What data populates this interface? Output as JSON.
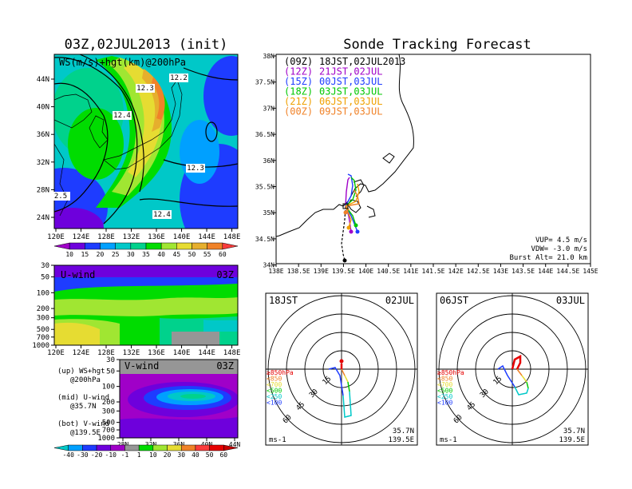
{
  "left_title": "03Z,02JUL2013 (init)",
  "right_title": "Sonde Tracking Forecast",
  "map_ws": {
    "label": "WS(m/s)+hgt(km)@200hPa",
    "lon_ticks": [
      "120E",
      "124E",
      "128E",
      "132E",
      "136E",
      "140E",
      "144E",
      "148E"
    ],
    "lat_ticks": [
      "44N",
      "40N",
      "36N",
      "32N",
      "28N",
      "24N"
    ],
    "contour_labels": [
      "12.3",
      "12.2",
      "12.4",
      "12.3",
      "12.4",
      "2.5"
    ]
  },
  "ws_colorbar": [
    "10",
    "15",
    "20",
    "25",
    "30",
    "35",
    "40",
    "45",
    "50",
    "55",
    "60"
  ],
  "ws_colors": [
    "#a000c8",
    "#6e00dc",
    "#1e3cff",
    "#00a0ff",
    "#00c8c8",
    "#00d28c",
    "#00dc00",
    "#a0e632",
    "#e6dc32",
    "#e6af2d",
    "#f08228",
    "#fa3c3c"
  ],
  "uwind": {
    "label": "U-wind",
    "time": "03Z",
    "p_ticks": [
      "30",
      "50",
      "100",
      "200",
      "300",
      "500",
      "700",
      "1000"
    ],
    "lon_ticks": [
      "120E",
      "124E",
      "128E",
      "132E",
      "136E",
      "140E",
      "144E",
      "148E"
    ]
  },
  "vwind": {
    "label": "V-wind",
    "time": "03Z",
    "p_ticks": [
      "30",
      "50",
      "100",
      "200",
      "300",
      "500",
      "700",
      "1000"
    ],
    "lat_ticks": [
      "28N",
      "32N",
      "36N",
      "40N",
      "44N"
    ]
  },
  "legend_notes": [
    {
      "a": "(up) WS+hgt",
      "b": "@200hPa"
    },
    {
      "a": "(mid) U-wind",
      "b": "@35.7N"
    },
    {
      "a": "(bot) V-wind",
      "b": "@139.5E"
    }
  ],
  "uv_colorbar": [
    "-40",
    "-30",
    "-20",
    "-10",
    "-1",
    "1",
    "10",
    "20",
    "30",
    "40",
    "50",
    "60"
  ],
  "uv_colors": [
    "#00c8c8",
    "#00a0ff",
    "#1e3cff",
    "#6e00dc",
    "#a000c8",
    "#969696",
    "#00dc00",
    "#a0e632",
    "#e6dc32",
    "#f08228",
    "#fa3c3c",
    "#e60000",
    "#c80000"
  ],
  "track_map": {
    "lat_ticks": [
      "38N",
      "37.5N",
      "37N",
      "36.5N",
      "36N",
      "35.5N",
      "35N",
      "34.5N",
      "34N"
    ],
    "lon_ticks": [
      "138E",
      "138.5E",
      "139E",
      "139.5E",
      "140E",
      "140.5E",
      "141E",
      "141.5E",
      "142E",
      "142.5E",
      "143E",
      "143.5E",
      "144E",
      "144.5E",
      "145E"
    ],
    "legend": [
      {
        "label": "(09Z)",
        "value": "18JST,02JUL2013",
        "color": "#000000"
      },
      {
        "label": "(12Z)",
        "value": "21JST,02JUL",
        "color": "#a000c8"
      },
      {
        "label": "(15Z)",
        "value": "00JST,03JUL",
        "color": "#1e3cff"
      },
      {
        "label": "(18Z)",
        "value": "03JST,03JUL",
        "color": "#00c800"
      },
      {
        "label": "(21Z)",
        "value": "06JST,03JUL",
        "color": "#f0a000"
      },
      {
        "label": "(00Z)",
        "value": "09JST,03JUL",
        "color": "#f08228"
      }
    ],
    "params": [
      "VUP= 4.5 m/s",
      "VDW= -3.0 m/s",
      "Burst Alt= 21.0 km"
    ]
  },
  "hodo1": {
    "left": "18JST",
    "right": "02JUL",
    "rings": [
      "15",
      "30",
      "45",
      "60"
    ],
    "levels": [
      {
        "label": "≥850hPa",
        "color": "#e60000"
      },
      {
        "label": "<850",
        "color": "#f08228"
      },
      {
        "label": "<700",
        "color": "#e6dc32"
      },
      {
        "label": "<500",
        "color": "#00c800"
      },
      {
        "label": "<250",
        "color": "#00c8c8"
      },
      {
        "label": "<100",
        "color": "#1e3cff"
      }
    ],
    "lat": "35.7N",
    "lon": "139.5E",
    "unit": "ms-1"
  },
  "hodo2": {
    "left": "06JST",
    "right": "03JUL",
    "rings": [
      "15",
      "30",
      "45",
      "60"
    ],
    "lat": "35.7N",
    "lon": "139.5E",
    "unit": "ms-1"
  }
}
